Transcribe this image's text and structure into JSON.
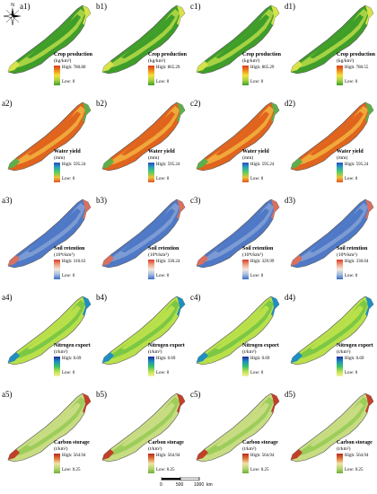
{
  "compass": {
    "north_label": "N"
  },
  "scale_bar": {
    "ticks": [
      "0",
      "500",
      "1000"
    ],
    "unit": "km"
  },
  "rows": [
    {
      "service": "crop",
      "title": "Crop production",
      "unit": "(kg/km²)",
      "ramp": [
        "#d93a1a",
        "#f08a1c",
        "#f6e03a",
        "#a6d243",
        "#3f9e2a"
      ],
      "map_colors": [
        "#3f9e2a",
        "#a6d243",
        "#d8e24a"
      ],
      "panels": [
        {
          "label": "a1)",
          "high": "High: 780.80",
          "low": "Low: 0"
        },
        {
          "label": "b1)",
          "high": "High: 865.29",
          "low": "Low: 0"
        },
        {
          "label": "c1)",
          "high": "High: 865.29",
          "low": "Low: 0"
        },
        {
          "label": "d1)",
          "high": "High: 780.55",
          "low": "Low: 0"
        }
      ]
    },
    {
      "service": "water",
      "title": "Water yield",
      "unit": "(mm)",
      "ramp": [
        "#2a4cc0",
        "#2aa6b8",
        "#5fce5a",
        "#f1c13a",
        "#e0521e"
      ],
      "map_colors": [
        "#e0641e",
        "#f0a83a",
        "#5fae4a"
      ],
      "panels": [
        {
          "label": "a2)",
          "high": "High: 595.24",
          "low": "Low: 0"
        },
        {
          "label": "b2)",
          "high": "High: 595.24",
          "low": "Low: 0"
        },
        {
          "label": "c2)",
          "high": "High: 595.24",
          "low": "Low: 0"
        },
        {
          "label": "d2)",
          "high": "High: 595.24",
          "low": "Low: 0"
        }
      ]
    },
    {
      "service": "soil",
      "title": "Soil retention",
      "unit": "(10⁴t/km²)",
      "ramp": [
        "#d63a2a",
        "#f0a080",
        "#f2e8e0",
        "#a6bde0",
        "#3e6cc0"
      ],
      "map_colors": [
        "#4f79c6",
        "#7c9bd3",
        "#d97060"
      ],
      "panels": [
        {
          "label": "a3)",
          "high": "High: 310.63",
          "low": "Low: 0"
        },
        {
          "label": "b3)",
          "high": "High: 330.24",
          "low": "Low: 0"
        },
        {
          "label": "c3)",
          "high": "High: 329.99",
          "low": "Low: 0"
        },
        {
          "label": "d3)",
          "high": "High: 330.04",
          "low": "Low: 0"
        }
      ]
    },
    {
      "service": "nitrogen",
      "title": "Nitrogen export",
      "unit": "(t/km²)",
      "ramp": [
        "#1d2c9a",
        "#1f8fc0",
        "#3ac06a",
        "#b9e04a",
        "#f5f3a0"
      ],
      "map_colors": [
        "#b9e04a",
        "#7cc845",
        "#1f8fc0"
      ],
      "panels": [
        {
          "label": "a4)",
          "high": "High: 0.69",
          "low": "Low: 0"
        },
        {
          "label": "b4)",
          "high": "High: 0.69",
          "low": "Low: 0"
        },
        {
          "label": "c4)",
          "high": "High: 0.69",
          "low": "Low: 0"
        },
        {
          "label": "d4)",
          "high": "High: 0.69",
          "low": "Low: 0"
        }
      ]
    },
    {
      "service": "carbon",
      "title": "Carbon storage",
      "unit": "(t/km²)",
      "ramp": [
        "#b8281a",
        "#e0783a",
        "#f2e2a8",
        "#b5d870",
        "#6fae3a"
      ],
      "map_colors": [
        "#c8dc82",
        "#9ccd5a",
        "#c0402a"
      ],
      "panels": [
        {
          "label": "a5)",
          "high": "High: 564.94",
          "low": "Low: 0.25"
        },
        {
          "label": "b5)",
          "high": "High: 564.94",
          "low": "Low: 0.25"
        },
        {
          "label": "c5)",
          "high": "High: 564.94",
          "low": "Low: 0.25"
        },
        {
          "label": "d5)",
          "high": "High: 564.94",
          "low": "Low: 0.25"
        }
      ]
    }
  ]
}
